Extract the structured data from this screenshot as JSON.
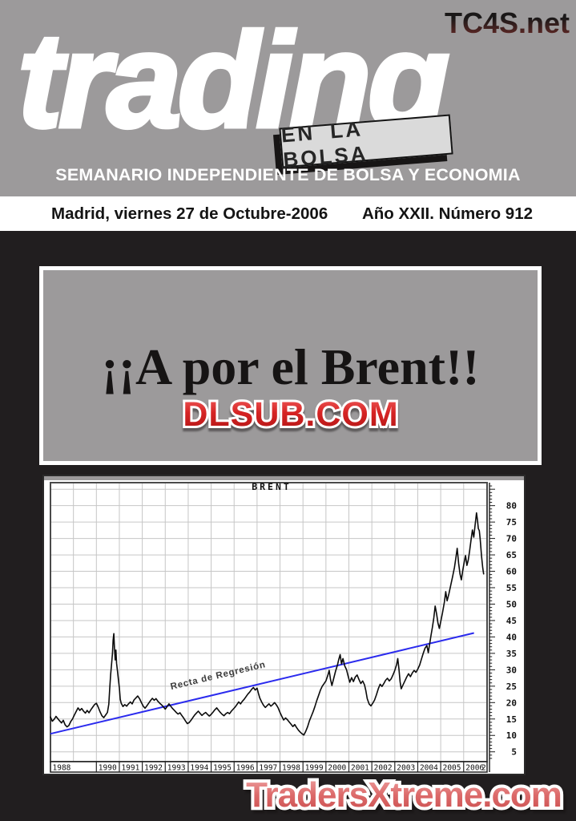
{
  "masthead": {
    "watermark": "TC4S.net",
    "logo": "trading",
    "tagline": "EN LA BOLSA",
    "subtitle": "SEMANARIO INDEPENDIENTE DE BOLSA Y ECONOMIA"
  },
  "dateline": {
    "left": "Madrid, viernes 27 de Octubre-2006",
    "right": "Año XXII. Número 912"
  },
  "headline": {
    "title": "¡¡A por el Brent!!",
    "watermark": "DLSUB.COM"
  },
  "footer": {
    "watermark": "TradersXtreme.com"
  },
  "chart_data": {
    "type": "line",
    "title": "BRENT",
    "xlabel": "",
    "ylabel": "",
    "grid": true,
    "grid_color": "#c6c6c6",
    "frame_color": "#4a4a4a",
    "xlim": [
      1988,
      2007.02
    ],
    "ylim": [
      2,
      87
    ],
    "x_tick_labels": [
      "1988",
      "1990",
      "1991",
      "1992",
      "1993",
      "1994",
      "1995",
      "1996",
      "1997",
      "1998",
      "1999",
      "2000",
      "2001",
      "2002",
      "2003",
      "2004",
      "2005",
      "2006"
    ],
    "x_tick_years": [
      1988,
      1990,
      1991,
      1992,
      1993,
      1994,
      1995,
      1996,
      1997,
      1998,
      1999,
      2000,
      2001,
      2002,
      2003,
      2004,
      2005,
      2006
    ],
    "x_partial_label": "2",
    "y_ticks": [
      5,
      10,
      15,
      20,
      25,
      30,
      35,
      40,
      45,
      50,
      55,
      60,
      65,
      70,
      75,
      80
    ],
    "regression": {
      "label": "Recta de Regresión",
      "color": "#2b2bee",
      "from": [
        1988,
        10.5
      ],
      "to": [
        2006.45,
        41.2
      ]
    },
    "series": [
      {
        "name": "Brent",
        "color": "#0b0b0b",
        "points": [
          [
            1988.0,
            15.6
          ],
          [
            1988.08,
            14.3
          ],
          [
            1988.16,
            14.9
          ],
          [
            1988.24,
            15.8
          ],
          [
            1988.32,
            15.1
          ],
          [
            1988.4,
            14.4
          ],
          [
            1988.48,
            13.8
          ],
          [
            1988.56,
            14.6
          ],
          [
            1988.64,
            13.2
          ],
          [
            1988.72,
            12.6
          ],
          [
            1988.8,
            13.0
          ],
          [
            1988.88,
            14.2
          ],
          [
            1988.96,
            15.0
          ],
          [
            1989.04,
            16.2
          ],
          [
            1989.12,
            17.3
          ],
          [
            1989.2,
            18.4
          ],
          [
            1989.28,
            17.6
          ],
          [
            1989.36,
            18.2
          ],
          [
            1989.44,
            17.4
          ],
          [
            1989.52,
            16.8
          ],
          [
            1989.6,
            17.6
          ],
          [
            1989.68,
            16.9
          ],
          [
            1989.76,
            17.8
          ],
          [
            1989.84,
            18.6
          ],
          [
            1989.92,
            19.4
          ],
          [
            1990.0,
            19.8
          ],
          [
            1990.08,
            18.6
          ],
          [
            1990.16,
            17.2
          ],
          [
            1990.24,
            16.0
          ],
          [
            1990.32,
            15.4
          ],
          [
            1990.4,
            16.2
          ],
          [
            1990.48,
            17.0
          ],
          [
            1990.54,
            19.5
          ],
          [
            1990.58,
            24.0
          ],
          [
            1990.62,
            28.5
          ],
          [
            1990.66,
            31.5
          ],
          [
            1990.7,
            35.0
          ],
          [
            1990.73,
            39.0
          ],
          [
            1990.76,
            41.0
          ],
          [
            1990.79,
            36.5
          ],
          [
            1990.82,
            33.0
          ],
          [
            1990.85,
            36.0
          ],
          [
            1990.88,
            32.0
          ],
          [
            1990.92,
            29.5
          ],
          [
            1990.96,
            27.0
          ],
          [
            1991.0,
            24.5
          ],
          [
            1991.04,
            21.0
          ],
          [
            1991.08,
            19.8
          ],
          [
            1991.16,
            18.8
          ],
          [
            1991.24,
            19.4
          ],
          [
            1991.32,
            18.9
          ],
          [
            1991.4,
            19.6
          ],
          [
            1991.48,
            20.2
          ],
          [
            1991.56,
            19.6
          ],
          [
            1991.64,
            20.8
          ],
          [
            1991.72,
            21.4
          ],
          [
            1991.8,
            22.0
          ],
          [
            1991.88,
            21.2
          ],
          [
            1991.96,
            20.0
          ],
          [
            1992.04,
            18.9
          ],
          [
            1992.12,
            18.3
          ],
          [
            1992.2,
            19.0
          ],
          [
            1992.28,
            19.8
          ],
          [
            1992.36,
            20.6
          ],
          [
            1992.44,
            21.3
          ],
          [
            1992.52,
            20.7
          ],
          [
            1992.6,
            21.2
          ],
          [
            1992.68,
            20.4
          ],
          [
            1992.76,
            19.8
          ],
          [
            1992.84,
            19.3
          ],
          [
            1992.92,
            18.7
          ],
          [
            1993.0,
            18.0
          ],
          [
            1993.08,
            18.8
          ],
          [
            1993.16,
            19.6
          ],
          [
            1993.24,
            18.9
          ],
          [
            1993.32,
            18.2
          ],
          [
            1993.4,
            17.6
          ],
          [
            1993.48,
            17.0
          ],
          [
            1993.56,
            16.5
          ],
          [
            1993.64,
            16.9
          ],
          [
            1993.72,
            16.1
          ],
          [
            1993.8,
            15.3
          ],
          [
            1993.88,
            14.4
          ],
          [
            1993.96,
            13.6
          ],
          [
            1994.04,
            13.9
          ],
          [
            1994.12,
            14.6
          ],
          [
            1994.2,
            15.4
          ],
          [
            1994.28,
            16.2
          ],
          [
            1994.36,
            16.8
          ],
          [
            1994.44,
            17.4
          ],
          [
            1994.52,
            16.7
          ],
          [
            1994.6,
            16.1
          ],
          [
            1994.68,
            16.6
          ],
          [
            1994.76,
            17.0
          ],
          [
            1994.84,
            16.4
          ],
          [
            1994.92,
            15.9
          ],
          [
            1995.0,
            16.4
          ],
          [
            1995.08,
            17.1
          ],
          [
            1995.16,
            17.8
          ],
          [
            1995.24,
            18.4
          ],
          [
            1995.32,
            17.7
          ],
          [
            1995.4,
            17.0
          ],
          [
            1995.48,
            16.4
          ],
          [
            1995.56,
            16.0
          ],
          [
            1995.64,
            16.6
          ],
          [
            1995.72,
            17.0
          ],
          [
            1995.8,
            16.6
          ],
          [
            1995.88,
            17.4
          ],
          [
            1995.96,
            18.0
          ],
          [
            1996.04,
            18.6
          ],
          [
            1996.12,
            19.4
          ],
          [
            1996.2,
            20.2
          ],
          [
            1996.28,
            19.6
          ],
          [
            1996.36,
            20.4
          ],
          [
            1996.44,
            21.0
          ],
          [
            1996.52,
            21.8
          ],
          [
            1996.6,
            22.6
          ],
          [
            1996.68,
            23.2
          ],
          [
            1996.76,
            24.0
          ],
          [
            1996.84,
            24.6
          ],
          [
            1996.92,
            23.8
          ],
          [
            1997.0,
            24.4
          ],
          [
            1997.06,
            22.8
          ],
          [
            1997.12,
            21.4
          ],
          [
            1997.2,
            20.2
          ],
          [
            1997.28,
            19.2
          ],
          [
            1997.36,
            18.5
          ],
          [
            1997.44,
            19.1
          ],
          [
            1997.52,
            19.6
          ],
          [
            1997.6,
            18.9
          ],
          [
            1997.68,
            19.4
          ],
          [
            1997.76,
            20.0
          ],
          [
            1997.84,
            19.3
          ],
          [
            1997.92,
            18.4
          ],
          [
            1998.0,
            17.0
          ],
          [
            1998.08,
            15.8
          ],
          [
            1998.16,
            14.7
          ],
          [
            1998.24,
            15.3
          ],
          [
            1998.32,
            14.8
          ],
          [
            1998.4,
            14.1
          ],
          [
            1998.48,
            13.4
          ],
          [
            1998.56,
            12.7
          ],
          [
            1998.64,
            13.3
          ],
          [
            1998.72,
            12.4
          ],
          [
            1998.8,
            11.6
          ],
          [
            1998.88,
            11.0
          ],
          [
            1998.96,
            10.5
          ],
          [
            1999.04,
            10.1
          ],
          [
            1999.12,
            11.2
          ],
          [
            1999.2,
            12.6
          ],
          [
            1999.28,
            14.4
          ],
          [
            1999.36,
            15.8
          ],
          [
            1999.44,
            17.2
          ],
          [
            1999.52,
            18.8
          ],
          [
            1999.6,
            20.6
          ],
          [
            1999.68,
            22.2
          ],
          [
            1999.76,
            23.8
          ],
          [
            1999.84,
            25.0
          ],
          [
            1999.92,
            25.8
          ],
          [
            2000.0,
            26.6
          ],
          [
            2000.08,
            28.2
          ],
          [
            2000.14,
            29.8
          ],
          [
            2000.2,
            27.0
          ],
          [
            2000.26,
            25.2
          ],
          [
            2000.34,
            27.4
          ],
          [
            2000.42,
            29.6
          ],
          [
            2000.5,
            31.4
          ],
          [
            2000.56,
            33.2
          ],
          [
            2000.62,
            34.6
          ],
          [
            2000.68,
            31.8
          ],
          [
            2000.74,
            33.4
          ],
          [
            2000.82,
            31.2
          ],
          [
            2000.9,
            30.0
          ],
          [
            2000.96,
            28.2
          ],
          [
            2001.04,
            26.2
          ],
          [
            2001.12,
            27.6
          ],
          [
            2001.2,
            26.4
          ],
          [
            2001.28,
            27.8
          ],
          [
            2001.36,
            28.4
          ],
          [
            2001.44,
            27.0
          ],
          [
            2001.52,
            25.8
          ],
          [
            2001.6,
            26.6
          ],
          [
            2001.68,
            25.4
          ],
          [
            2001.74,
            23.6
          ],
          [
            2001.8,
            21.2
          ],
          [
            2001.88,
            19.6
          ],
          [
            2001.96,
            19.0
          ],
          [
            2002.04,
            19.8
          ],
          [
            2002.12,
            20.8
          ],
          [
            2002.2,
            22.4
          ],
          [
            2002.28,
            24.2
          ],
          [
            2002.36,
            25.6
          ],
          [
            2002.44,
            24.9
          ],
          [
            2002.52,
            25.8
          ],
          [
            2002.6,
            26.8
          ],
          [
            2002.68,
            27.4
          ],
          [
            2002.76,
            26.6
          ],
          [
            2002.84,
            27.2
          ],
          [
            2002.92,
            28.4
          ],
          [
            2003.0,
            29.8
          ],
          [
            2003.08,
            31.6
          ],
          [
            2003.13,
            33.4
          ],
          [
            2003.18,
            30.2
          ],
          [
            2003.23,
            26.4
          ],
          [
            2003.28,
            24.2
          ],
          [
            2003.36,
            25.4
          ],
          [
            2003.44,
            26.6
          ],
          [
            2003.52,
            27.8
          ],
          [
            2003.6,
            28.8
          ],
          [
            2003.68,
            27.9
          ],
          [
            2003.76,
            29.0
          ],
          [
            2003.84,
            29.8
          ],
          [
            2003.92,
            29.2
          ],
          [
            2004.0,
            30.2
          ],
          [
            2004.08,
            31.4
          ],
          [
            2004.16,
            33.2
          ],
          [
            2004.24,
            35.0
          ],
          [
            2004.32,
            36.6
          ],
          [
            2004.4,
            37.4
          ],
          [
            2004.46,
            35.2
          ],
          [
            2004.52,
            38.0
          ],
          [
            2004.58,
            40.6
          ],
          [
            2004.64,
            43.0
          ],
          [
            2004.7,
            45.8
          ],
          [
            2004.76,
            49.4
          ],
          [
            2004.82,
            47.0
          ],
          [
            2004.88,
            44.2
          ],
          [
            2004.94,
            42.6
          ],
          [
            2005.0,
            44.6
          ],
          [
            2005.08,
            47.4
          ],
          [
            2005.16,
            50.6
          ],
          [
            2005.22,
            53.8
          ],
          [
            2005.28,
            51.0
          ],
          [
            2005.36,
            53.2
          ],
          [
            2005.44,
            55.8
          ],
          [
            2005.52,
            58.4
          ],
          [
            2005.6,
            61.2
          ],
          [
            2005.66,
            64.0
          ],
          [
            2005.72,
            67.0
          ],
          [
            2005.78,
            62.4
          ],
          [
            2005.84,
            59.2
          ],
          [
            2005.9,
            57.4
          ],
          [
            2005.96,
            60.2
          ],
          [
            2006.02,
            62.6
          ],
          [
            2006.08,
            64.8
          ],
          [
            2006.14,
            61.8
          ],
          [
            2006.2,
            63.4
          ],
          [
            2006.26,
            66.2
          ],
          [
            2006.32,
            69.4
          ],
          [
            2006.38,
            72.6
          ],
          [
            2006.44,
            70.4
          ],
          [
            2006.5,
            74.2
          ],
          [
            2006.56,
            77.8
          ],
          [
            2006.6,
            75.6
          ],
          [
            2006.64,
            73.0
          ],
          [
            2006.68,
            72.4
          ],
          [
            2006.72,
            69.8
          ],
          [
            2006.78,
            64.6
          ],
          [
            2006.83,
            61.0
          ],
          [
            2006.87,
            59.2
          ]
        ]
      }
    ]
  }
}
